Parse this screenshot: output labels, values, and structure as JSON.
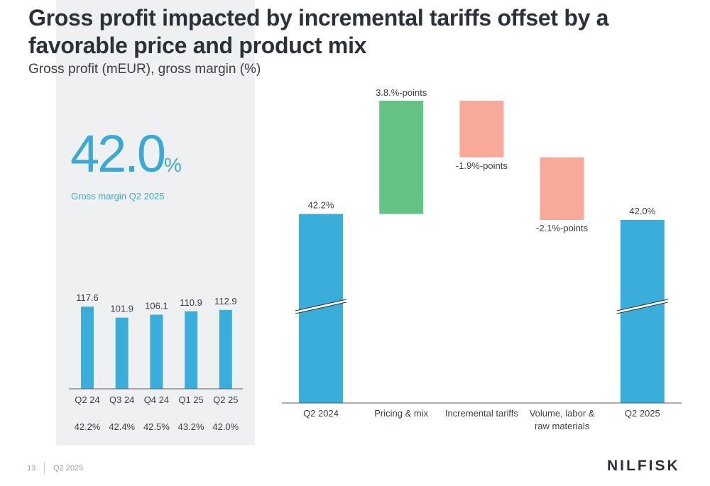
{
  "slide": {
    "title": "Gross profit impacted by incremental tariffs offset by a favorable price and product mix",
    "subtitle": "Gross profit (mEUR), gross margin (%)",
    "page_number": "13",
    "period": "Q2 2025",
    "logo": "NILFISK"
  },
  "kpi": {
    "value": "42.0",
    "unit": "%",
    "label": "Gross margin Q2 2025"
  },
  "colors": {
    "blue": "#3aaddb",
    "green": "#64c287",
    "salmon": "#f8a99a",
    "axis": "#555b63",
    "label": "#3a3f47"
  },
  "chart_data": [
    {
      "type": "bar",
      "categories": [
        "Q2 24",
        "Q3 24",
        "Q4 24",
        "Q1 25",
        "Q2 25"
      ],
      "values": [
        117.6,
        101.9,
        106.1,
        110.9,
        112.9
      ],
      "value_labels": [
        "117.6",
        "101.9",
        "106.1",
        "110.9",
        "112.9"
      ],
      "secondary_row": [
        "42.2%",
        "42.4%",
        "42.5%",
        "43.2%",
        "42.0%"
      ],
      "ylim": [
        0,
        130
      ]
    },
    {
      "type": "bar",
      "subtype": "waterfall",
      "categories": [
        "Q2 2024",
        "Pricing & mix",
        "Incremental tariffs",
        "Volume, labor & raw materials",
        "Q2 2025"
      ],
      "category_lines": [
        [
          "Q2 2024"
        ],
        [
          "Pricing & mix"
        ],
        [
          "Incremental tariffs"
        ],
        [
          "Volume, labor &",
          "raw materials"
        ],
        [
          "Q2 2025"
        ]
      ],
      "kinds": [
        "total",
        "delta",
        "delta",
        "delta",
        "total"
      ],
      "values": [
        42.2,
        3.8,
        -1.9,
        -2.1,
        42.0
      ],
      "value_labels": [
        "42.2%",
        "3.8.%-points",
        "-1.9%-points",
        "-2.1%-points",
        "42.0%"
      ],
      "axis_break": true,
      "ylim": [
        37,
        47
      ]
    }
  ]
}
